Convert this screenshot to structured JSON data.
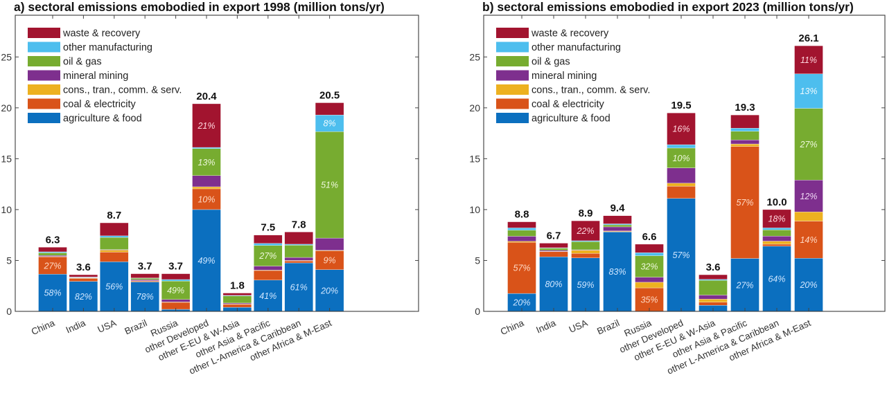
{
  "chart_data": [
    {
      "type": "bar",
      "stacked": true,
      "title": "a) sectoral emissions emobodied in export 1998 (million tons/yr)",
      "xlabel": "",
      "ylabel": "",
      "ylim": [
        0,
        29.1
      ],
      "yticks": [
        0,
        5,
        10,
        15,
        20,
        25
      ],
      "grid": false,
      "legend_position": "top-left",
      "categories": [
        "China",
        "India",
        "USA",
        "Brazil",
        "Russia",
        "other Developed",
        "other E-EU & W-Asia",
        "other Asia & Pacific",
        "other L-America & Caribbean",
        "other Africa & M-East"
      ],
      "totals": [
        "6.3",
        "3.6",
        "8.7",
        "3.7",
        "3.7",
        "20.4",
        "1.8",
        "7.5",
        "7.8",
        "20.5"
      ],
      "series": [
        {
          "name": "agriculture & food",
          "color": "#0b6fbf",
          "values": [
            3.65,
            2.95,
            4.87,
            2.89,
            0.2,
            10.0,
            0.4,
            3.07,
            4.76,
            4.1
          ],
          "labels": [
            "58%",
            "82%",
            "56%",
            "78%",
            "",
            "49%",
            "",
            "41%",
            "61%",
            "20%"
          ]
        },
        {
          "name": "coal & electricity",
          "color": "#d95319",
          "values": [
            1.7,
            0.3,
            0.95,
            0.1,
            0.7,
            2.04,
            0.3,
            0.95,
            0.2,
            1.85
          ],
          "labels": [
            "27%",
            "",
            "",
            "",
            "",
            "10%",
            "",
            "",
            "",
            "9%"
          ]
        },
        {
          "name": "cons., tran., comm. & serv.",
          "color": "#edb120",
          "values": [
            0.05,
            0.02,
            0.2,
            0.02,
            0.02,
            0.2,
            0.02,
            0.03,
            0.04,
            0.05
          ],
          "labels": [
            "",
            "",
            "",
            "",
            "",
            "",
            "",
            "",
            "",
            ""
          ]
        },
        {
          "name": "mineral mining",
          "color": "#7e2f8e",
          "values": [
            0.1,
            0.05,
            0.05,
            0.1,
            0.25,
            1.1,
            0.1,
            0.4,
            0.3,
            1.2
          ],
          "labels": [
            "",
            "",
            "",
            "",
            "",
            "",
            "",
            "",
            "",
            ""
          ]
        },
        {
          "name": "oil & gas",
          "color": "#77ac30",
          "values": [
            0.25,
            0.03,
            1.2,
            0.15,
            1.81,
            2.65,
            0.7,
            2.03,
            1.2,
            10.46
          ],
          "labels": [
            "",
            "",
            "",
            "",
            "49%",
            "13%",
            "",
            "27%",
            "",
            "51%"
          ]
        },
        {
          "name": "other manufacturing",
          "color": "#4dbeee",
          "values": [
            0.1,
            0.03,
            0.15,
            0.02,
            0.15,
            0.12,
            0.05,
            0.2,
            0.1,
            1.64
          ],
          "labels": [
            "",
            "",
            "",
            "",
            "",
            "",
            "",
            "",
            "",
            "8%"
          ]
        },
        {
          "name": "waste & recovery",
          "color": "#a2142f",
          "values": [
            0.45,
            0.22,
            1.28,
            0.42,
            0.57,
            4.29,
            0.23,
            0.82,
            1.2,
            1.2
          ],
          "labels": [
            "",
            "",
            "",
            "",
            "",
            "21%",
            "",
            "",
            "",
            ""
          ]
        }
      ]
    },
    {
      "type": "bar",
      "stacked": true,
      "title": "b) sectoral emissions emobodied in export 2023 (million tons/yr)",
      "xlabel": "",
      "ylabel": "",
      "ylim": [
        0,
        29.1
      ],
      "yticks": [
        0,
        5,
        10,
        15,
        20,
        25
      ],
      "grid": false,
      "legend_position": "top-left",
      "categories": [
        "China",
        "India",
        "USA",
        "Brazil",
        "Russia",
        "other Developed",
        "other E-EU & W-Asia",
        "other Asia & Pacific",
        "other L-America & Caribbean",
        "other Africa & M-East"
      ],
      "totals": [
        "8.8",
        "6.7",
        "8.9",
        "9.4",
        "6.6",
        "19.5",
        "3.6",
        "19.3",
        "10.0",
        "26.1"
      ],
      "series": [
        {
          "name": "agriculture & food",
          "color": "#0b6fbf",
          "values": [
            1.76,
            5.36,
            5.25,
            7.8,
            0.0,
            11.1,
            0.6,
            5.2,
            6.4,
            5.22
          ],
          "labels": [
            "20%",
            "80%",
            "59%",
            "83%",
            "",
            "57%",
            "",
            "27%",
            "64%",
            "20%"
          ]
        },
        {
          "name": "coal & electricity",
          "color": "#d95319",
          "values": [
            5.02,
            0.5,
            0.45,
            0.05,
            2.31,
            1.2,
            0.3,
            11.0,
            0.2,
            3.65
          ],
          "labels": [
            "57%",
            "",
            "",
            "",
            "35%",
            "",
            "",
            "57%",
            "",
            "14%"
          ]
        },
        {
          "name": "cons., tran., comm. & serv.",
          "color": "#edb120",
          "values": [
            0.1,
            0.04,
            0.3,
            0.05,
            0.55,
            0.3,
            0.3,
            0.25,
            0.3,
            0.9
          ],
          "labels": [
            "",
            "",
            "",
            "",
            "",
            "",
            "",
            "",
            "",
            ""
          ]
        },
        {
          "name": "mineral mining",
          "color": "#7e2f8e",
          "values": [
            0.5,
            0.1,
            0.05,
            0.4,
            0.5,
            1.5,
            0.4,
            0.4,
            0.5,
            3.13
          ],
          "labels": [
            "",
            "",
            "",
            "",
            "",
            "",
            "",
            "",
            "",
            "12%"
          ]
        },
        {
          "name": "oil & gas",
          "color": "#77ac30",
          "values": [
            0.6,
            0.2,
            0.8,
            0.2,
            2.11,
            1.95,
            1.45,
            0.85,
            0.6,
            7.05
          ],
          "labels": [
            "",
            "",
            "",
            "",
            "32%",
            "10%",
            "",
            "",
            "",
            "27%"
          ]
        },
        {
          "name": "other manufacturing",
          "color": "#4dbeee",
          "values": [
            0.22,
            0.05,
            0.09,
            0.1,
            0.3,
            0.33,
            0.1,
            0.3,
            0.2,
            3.39
          ],
          "labels": [
            "",
            "",
            "",
            "",
            "",
            "",
            "",
            "",
            "",
            "13%"
          ]
        },
        {
          "name": "waste & recovery",
          "color": "#a2142f",
          "values": [
            0.6,
            0.45,
            1.96,
            0.8,
            0.83,
            3.12,
            0.45,
            1.3,
            1.8,
            2.76
          ],
          "labels": [
            "",
            "",
            "22%",
            "",
            "",
            "16%",
            "",
            "",
            "18%",
            "11%"
          ]
        }
      ]
    }
  ],
  "legend_order": [
    "waste & recovery",
    "other manufacturing",
    "oil & gas",
    "mineral mining",
    "cons., tran., comm. & serv.",
    "coal & electricity",
    "agriculture & food"
  ]
}
